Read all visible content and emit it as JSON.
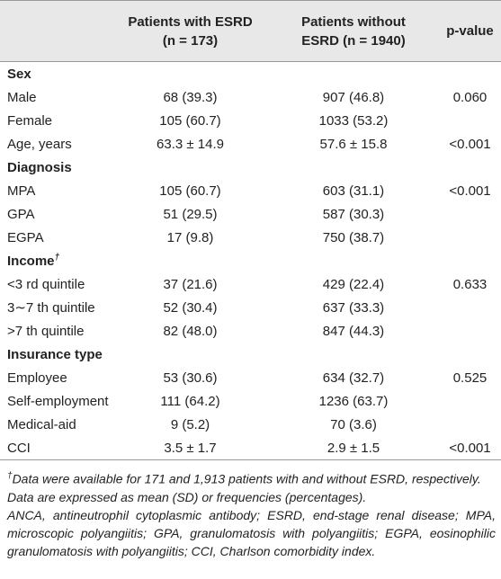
{
  "table": {
    "header": [
      {
        "lines": [
          "Patients with ESRD",
          "(n = 173)"
        ]
      },
      {
        "lines": [
          "Patients without",
          "ESRD (n = 1940)"
        ]
      },
      {
        "lines": [
          "p-value"
        ]
      }
    ],
    "sections": [
      {
        "title": "Sex",
        "rows": [
          [
            "Male",
            "68 (39.3)",
            "907 (46.8)",
            "0.060"
          ],
          [
            "Female",
            "105 (60.7)",
            "1033 (53.2)"
          ],
          [
            "Age, years",
            "63.3 ± 14.9",
            "57.6 ± 15.8",
            "<0.001"
          ]
        ]
      },
      {
        "title": "Diagnosis",
        "rows": [
          [
            "MPA",
            "105 (60.7)",
            "603 (31.1)",
            "<0.001"
          ],
          [
            "GPA",
            "51 (29.5)",
            "587 (30.3)"
          ],
          [
            "EGPA",
            "17 (9.8)",
            "750 (38.7)"
          ]
        ]
      },
      {
        "title": "Income",
        "mark": "†",
        "rows": [
          [
            "<3 rd quintile",
            "37 (21.6)",
            "429 (22.4)",
            "0.633"
          ],
          [
            "3∼7 th quintile",
            "52 (30.4)",
            "637 (33.3)"
          ],
          [
            ">7 th quintile",
            "82 (48.0)",
            "847 (44.3)"
          ]
        ]
      },
      {
        "title": "Insurance type",
        "rows": [
          [
            "Employee",
            "53 (30.6)",
            "634 (32.7)",
            "0.525"
          ],
          [
            "Self-employment",
            "111 (64.2)",
            "1236 (63.7)"
          ],
          [
            "Medical-aid",
            "9 (5.2)",
            "70 (3.6)"
          ],
          [
            "CCI",
            "3.5 ± 1.7",
            "2.9 ± 1.5",
            "<0.001"
          ]
        ]
      }
    ],
    "footnotes": [
      {
        "mark": "†",
        "text": "Data were available for 171 and 1,913 patients with and without ESRD, respectively."
      },
      {
        "text": "Data are expressed as mean (SD) or frequencies (percentages)."
      },
      {
        "text": "ANCA, antineutrophil cytoplasmic antibody; ESRD, end-stage renal disease; MPA, microscopic polyangiitis; GPA, granulomatosis with polyangiitis; EGPA, eosinophilic granulomatosis with polyangiitis; CCI, Charlson comorbidity index."
      }
    ]
  }
}
